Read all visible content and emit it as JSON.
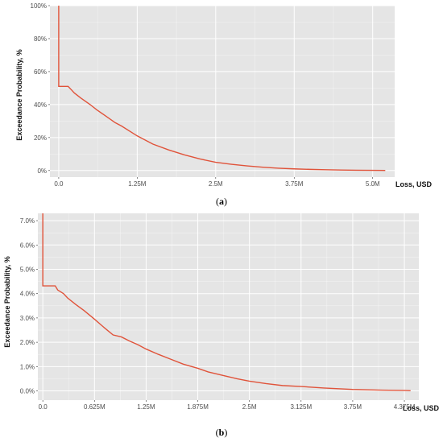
{
  "colors": {
    "panel": "#e5e5e5",
    "grid_major": "#ffffff",
    "line": "#e0533a"
  },
  "chart_data": [
    {
      "type": "line",
      "caption_letter": "a",
      "xlabel": "Loss, USD",
      "ylabel": "Exceedance Probability, %",
      "xlim": [
        -0.14,
        5.35
      ],
      "ylim": [
        -4,
        100
      ],
      "x_ticks": [
        0.0,
        1.25,
        2.5,
        3.75,
        5.0
      ],
      "x_tick_labels": [
        "0.0",
        "1.25M",
        "2.5M",
        "3.75M",
        "5.0M"
      ],
      "y_ticks": [
        0,
        20,
        40,
        60,
        80,
        100
      ],
      "y_tick_labels": [
        "0%",
        "20%",
        "40%",
        "60%",
        "80%",
        "100%"
      ],
      "grid": true,
      "series": [
        {
          "x": [
            0.0,
            0.0,
            0.0,
            0.1,
            0.15,
            0.2,
            0.25,
            0.35,
            0.5,
            0.6,
            0.75,
            0.9,
            1.0,
            1.25,
            1.5,
            1.75,
            2.0,
            2.25,
            2.5,
            2.75,
            3.0,
            3.25,
            3.5,
            3.75,
            4.0,
            4.25,
            4.5,
            4.75,
            5.0,
            5.2
          ],
          "y": [
            100,
            51,
            51,
            51,
            51,
            49,
            47,
            44,
            40,
            37,
            33,
            29,
            27,
            21,
            16,
            12.5,
            9.5,
            7,
            5,
            3.8,
            2.8,
            2,
            1.4,
            1,
            0.7,
            0.5,
            0.3,
            0.2,
            0.1,
            0.05
          ]
        }
      ]
    },
    {
      "type": "line",
      "caption_letter": "b",
      "xlabel": "Loss, USD",
      "ylabel": "Exceedance Probability, %",
      "xlim": [
        -0.06,
        4.55
      ],
      "ylim": [
        -0.38,
        7.3
      ],
      "x_ticks": [
        0.0,
        0.625,
        1.25,
        1.875,
        2.5,
        3.125,
        3.75,
        4.375
      ],
      "x_tick_labels": [
        "0.0",
        "0.625M",
        "1.25M",
        "1.875M",
        "2.5M",
        "3.125M",
        "3.75M",
        "4.375M"
      ],
      "y_ticks": [
        0,
        1,
        2,
        3,
        4,
        5,
        6,
        7
      ],
      "y_tick_labels": [
        "0.0%",
        "1.0%",
        "2.0%",
        "3.0%",
        "4.0%",
        "5.0%",
        "6.0%",
        "7.0%"
      ],
      "grid": true,
      "series": [
        {
          "x": [
            0.0,
            0.0,
            0.15,
            0.18,
            0.25,
            0.3,
            0.4,
            0.5,
            0.625,
            0.75,
            0.85,
            0.95,
            1.05,
            1.15,
            1.25,
            1.4,
            1.55,
            1.7,
            1.875,
            2.0,
            2.2,
            2.35,
            2.5,
            2.7,
            2.9,
            3.125,
            3.4,
            3.75,
            4.1,
            4.375,
            4.45
          ],
          "y": [
            7.3,
            4.32,
            4.32,
            4.15,
            4.0,
            3.82,
            3.55,
            3.3,
            2.95,
            2.58,
            2.3,
            2.22,
            2.05,
            1.9,
            1.72,
            1.5,
            1.3,
            1.1,
            0.93,
            0.78,
            0.62,
            0.5,
            0.4,
            0.3,
            0.22,
            0.18,
            0.12,
            0.06,
            0.03,
            0.02,
            0.01
          ]
        }
      ]
    }
  ]
}
